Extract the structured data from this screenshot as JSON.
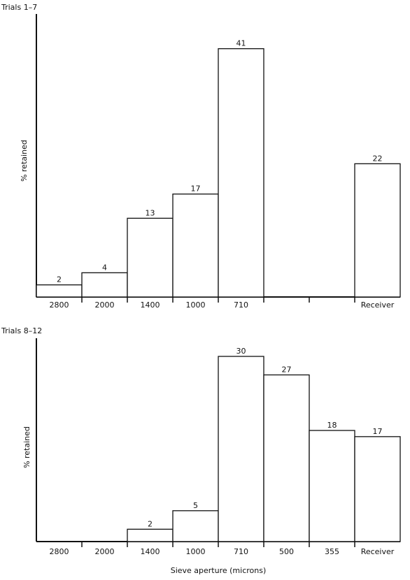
{
  "chart_data": [
    {
      "type": "bar",
      "title": "Trials 1–7",
      "ylabel": "% retained",
      "xlabel": "",
      "categories": [
        "2800",
        "2000",
        "1400",
        "1000",
        "710",
        "",
        "",
        "Receiver"
      ],
      "values": [
        2,
        4,
        13,
        17,
        41,
        null,
        null,
        22
      ],
      "value_labels": [
        "2",
        "4",
        "13",
        "17",
        "41",
        "",
        "",
        "22"
      ],
      "ylim": [
        0,
        42
      ],
      "grid": false
    },
    {
      "type": "bar",
      "title": "Trials 8–12",
      "ylabel": "% retained",
      "xlabel": "Sieve aperture (microns)",
      "categories": [
        "2800",
        "2000",
        "1400",
        "1000",
        "710",
        "500",
        "355",
        "Receiver"
      ],
      "values": [
        null,
        null,
        2,
        5,
        30,
        27,
        18,
        17
      ],
      "value_labels": [
        "",
        "",
        "2",
        "5",
        "30",
        "27",
        "18",
        "17"
      ],
      "ylim": [
        0,
        30
      ],
      "grid": false
    }
  ]
}
